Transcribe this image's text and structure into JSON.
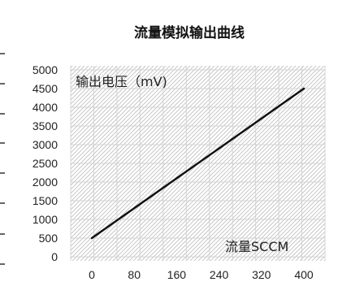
{
  "chart_data": {
    "type": "line",
    "title": "流量模拟输出曲线",
    "xlabel": "流量SCCM",
    "ylabel": "输出电压（mV)",
    "x_ticks": [
      0,
      80,
      160,
      240,
      320,
      400
    ],
    "y_ticks": [
      0,
      500,
      1000,
      1500,
      2000,
      2500,
      3000,
      3500,
      4000,
      4500,
      5000
    ],
    "xlim": [
      0,
      400
    ],
    "ylim": [
      0,
      5000
    ],
    "grid": true,
    "series": [
      {
        "x": [
          0,
          400
        ],
        "y": [
          500,
          4500
        ],
        "color": "#111111"
      }
    ]
  }
}
